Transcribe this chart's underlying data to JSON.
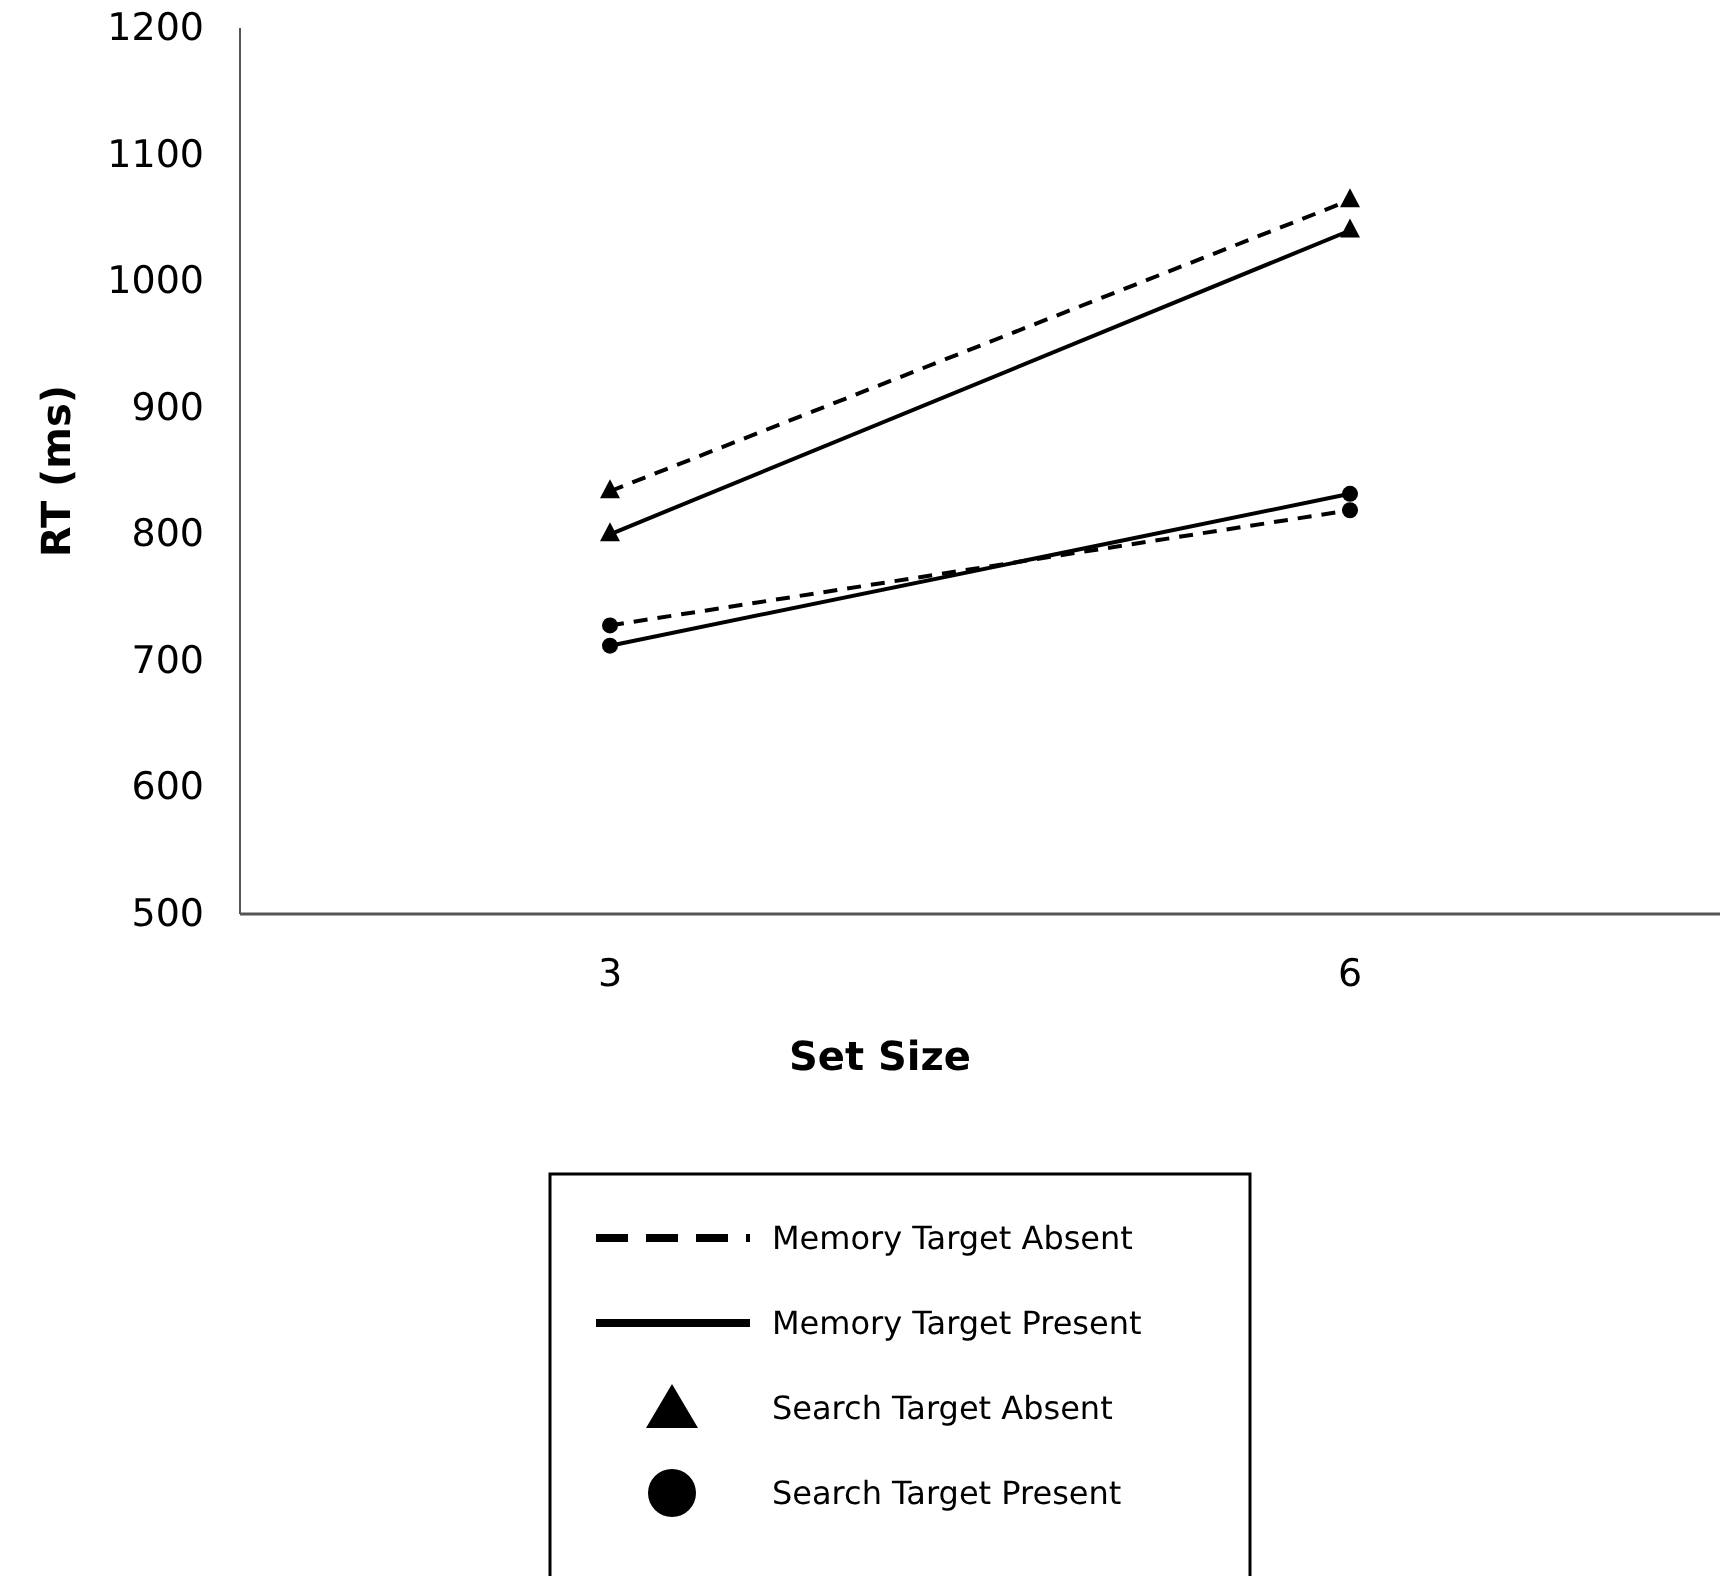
{
  "chart_data": {
    "type": "line",
    "xlabel": "Set Size",
    "ylabel": "RT (ms)",
    "categories": [
      "3",
      "6"
    ],
    "ylim": [
      500,
      1200
    ],
    "yticks": [
      500,
      600,
      700,
      800,
      900,
      1000,
      1100,
      1200
    ],
    "grid": false,
    "series": [
      {
        "color": "#000000",
        "values": [
          834,
          1064
        ],
        "line_style": "dashed",
        "marker": "triangle"
      },
      {
        "color": "#000000",
        "values": [
          800,
          1040
        ],
        "line_style": "solid",
        "marker": "triangle"
      },
      {
        "color": "#000000",
        "values": [
          728,
          819
        ],
        "line_style": "dashed",
        "marker": "circle"
      },
      {
        "color": "#000000",
        "values": [
          712,
          832
        ],
        "line_style": "solid",
        "marker": "circle"
      }
    ],
    "annotations": [
      "Memory Target Absent",
      "Memory Target Present",
      "Search Target Absent",
      "Search Target Present"
    ]
  }
}
